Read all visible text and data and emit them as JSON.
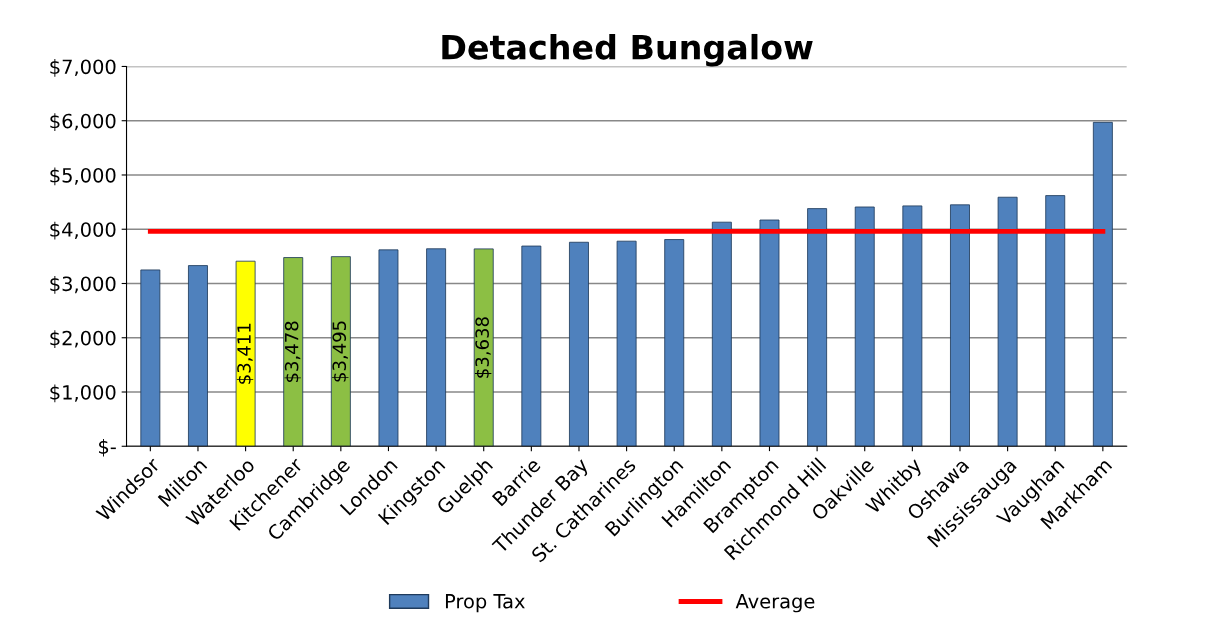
{
  "chart_data": {
    "type": "bar",
    "title": "Detached Bungalow",
    "categories": [
      "Windsor",
      "Milton",
      "Waterloo",
      "Kitchener",
      "Cambridge",
      "London",
      "Kingston",
      "Guelph",
      "Barrie",
      "Thunder Bay",
      "St. Catharines",
      "Burlington",
      "Hamilton",
      "Brampton",
      "Richmond Hill",
      "Oakville",
      "Whitby",
      "Oshawa",
      "Mississauga",
      "Vaughan",
      "Markham"
    ],
    "series": [
      {
        "name": "Prop Tax",
        "color": "#4f81bd",
        "colors": [
          "#4f81bd",
          "#4f81bd",
          "#ffff00",
          "#8cbf44",
          "#8cbf44",
          "#4f81bd",
          "#4f81bd",
          "#8cbf44",
          "#4f81bd",
          "#4f81bd",
          "#4f81bd",
          "#4f81bd",
          "#4f81bd",
          "#4f81bd",
          "#4f81bd",
          "#4f81bd",
          "#4f81bd",
          "#4f81bd",
          "#4f81bd",
          "#4f81bd",
          "#4f81bd"
        ],
        "values": [
          3250,
          3330,
          3411,
          3478,
          3495,
          3620,
          3640,
          3638,
          3690,
          3760,
          3780,
          3810,
          4130,
          4170,
          4380,
          4410,
          4430,
          4450,
          4590,
          4620,
          5970
        ],
        "value_labels": [
          null,
          null,
          "$3,411",
          "$3,478",
          "$3,495",
          null,
          null,
          "$3,638",
          null,
          null,
          null,
          null,
          null,
          null,
          null,
          null,
          null,
          null,
          null,
          null,
          null
        ]
      },
      {
        "name": "Average",
        "type": "line",
        "color": "#ff0000",
        "values": [
          3960,
          3960,
          3960,
          3960,
          3960,
          3960,
          3960,
          3960,
          3960,
          3960,
          3960,
          3960,
          3960,
          3960,
          3960,
          3960,
          3960,
          3960,
          3960,
          3960,
          3960
        ]
      }
    ],
    "ylim": [
      0,
      7000
    ],
    "yticks": [
      {
        "value": 0,
        "label": "$-"
      },
      {
        "value": 1000,
        "label": "$1,000"
      },
      {
        "value": 2000,
        "label": "$2,000"
      },
      {
        "value": 3000,
        "label": "$3,000"
      },
      {
        "value": 4000,
        "label": "$4,000"
      },
      {
        "value": 5000,
        "label": "$5,000"
      },
      {
        "value": 6000,
        "label": "$6,000"
      },
      {
        "value": 7000,
        "label": "$7,000"
      }
    ],
    "grid": "y",
    "legend": "bottom"
  }
}
